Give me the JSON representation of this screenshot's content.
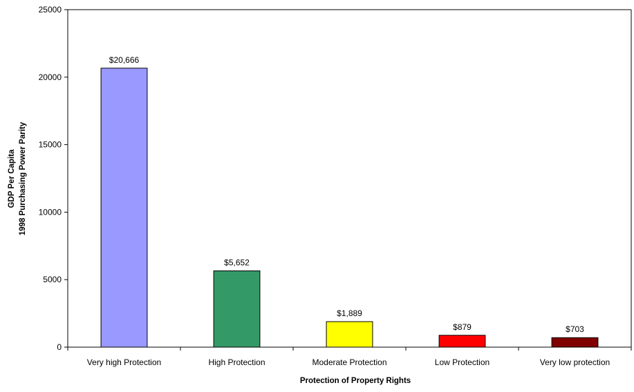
{
  "chart_data": {
    "type": "bar",
    "title": "",
    "xlabel": "Protection of Property Rights",
    "ylabel": [
      "GDP Per Capita",
      "1998 Purchasing Power Parity"
    ],
    "ylim": [
      0,
      25000
    ],
    "yticks": [
      0,
      5000,
      10000,
      15000,
      20000,
      25000
    ],
    "ytick_labels": [
      "0",
      "5000",
      "10000",
      "15000",
      "20000",
      "25000"
    ],
    "grid": false,
    "legend": "none",
    "categories": [
      "Very high Protection",
      "High Protection",
      "Moderate Protection",
      "Low Protection",
      "Very low protection"
    ],
    "values": [
      20666,
      5652,
      1889,
      879,
      703
    ],
    "data_labels": [
      "$20,666",
      "$5,652",
      "$1,889",
      "$879",
      "$703"
    ],
    "colors": [
      "#9999ff",
      "#339966",
      "#ffff00",
      "#ff0000",
      "#800000"
    ]
  }
}
